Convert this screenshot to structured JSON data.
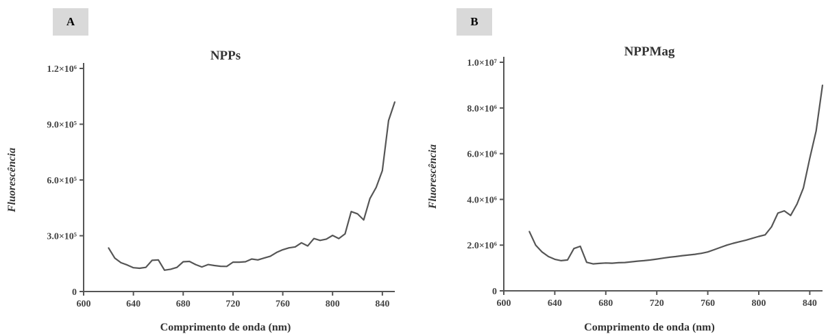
{
  "panels": [
    {
      "label": "A"
    },
    {
      "label": "B"
    }
  ],
  "chart_data": [
    {
      "type": "line",
      "title": "NPPs",
      "xlabel": "Comprimento de onda (nm)",
      "ylabel": "Fluorescência",
      "xlim": [
        600,
        850
      ],
      "ylim": [
        0,
        1200000
      ],
      "xticks": [
        600,
        640,
        680,
        720,
        760,
        800,
        840
      ],
      "xtick_labels": [
        "600",
        "640",
        "680",
        "720",
        "760",
        "800",
        "840"
      ],
      "yticks": [
        0,
        300000,
        600000,
        900000,
        1200000
      ],
      "ytick_labels": [
        "0",
        "3.0×10⁵",
        "6.0×10⁵",
        "9.0×10⁵",
        "1.2×10⁶"
      ],
      "grid": false,
      "series": [
        {
          "x": [
            620,
            625,
            630,
            635,
            640,
            645,
            650,
            655,
            660,
            665,
            670,
            675,
            680,
            685,
            690,
            695,
            700,
            705,
            710,
            715,
            720,
            725,
            730,
            735,
            740,
            745,
            750,
            755,
            760,
            765,
            770,
            775,
            780,
            785,
            790,
            795,
            800,
            805,
            810,
            815,
            820,
            825,
            830,
            835,
            840,
            845,
            850
          ],
          "y": [
            235000,
            180000,
            155000,
            143000,
            128000,
            125000,
            130000,
            168000,
            170000,
            115000,
            120000,
            130000,
            160000,
            162000,
            145000,
            132000,
            145000,
            140000,
            136000,
            135000,
            158000,
            158000,
            160000,
            175000,
            170000,
            180000,
            190000,
            210000,
            225000,
            235000,
            240000,
            262000,
            245000,
            285000,
            275000,
            282000,
            302000,
            285000,
            310000,
            430000,
            418000,
            385000,
            500000,
            560000,
            650000,
            920000,
            1020000
          ]
        }
      ]
    },
    {
      "type": "line",
      "title": "NPPMag",
      "xlabel": "Comprimento de onda (nm)",
      "ylabel": "Fluorescência",
      "xlim": [
        600,
        850
      ],
      "ylim": [
        0,
        10000000
      ],
      "xticks": [
        600,
        640,
        680,
        720,
        760,
        800,
        840
      ],
      "xtick_labels": [
        "600",
        "640",
        "680",
        "720",
        "760",
        "800",
        "840"
      ],
      "yticks": [
        0,
        2000000,
        4000000,
        6000000,
        8000000,
        10000000
      ],
      "ytick_labels": [
        "0",
        "2.0×10⁶",
        "4.0×10⁶",
        "6.0×10⁶",
        "8.0×10⁶",
        "1.0×10⁷"
      ],
      "grid": false,
      "series": [
        {
          "x": [
            620,
            625,
            630,
            635,
            640,
            645,
            650,
            655,
            660,
            665,
            670,
            675,
            680,
            685,
            690,
            695,
            700,
            705,
            710,
            715,
            720,
            725,
            730,
            735,
            740,
            745,
            750,
            755,
            760,
            765,
            770,
            775,
            780,
            785,
            790,
            795,
            800,
            805,
            810,
            815,
            820,
            825,
            830,
            835,
            840,
            845,
            850
          ],
          "y": [
            2600000,
            2000000,
            1700000,
            1500000,
            1380000,
            1320000,
            1350000,
            1850000,
            1950000,
            1250000,
            1180000,
            1200000,
            1220000,
            1210000,
            1230000,
            1240000,
            1270000,
            1300000,
            1320000,
            1350000,
            1390000,
            1430000,
            1470000,
            1500000,
            1540000,
            1570000,
            1600000,
            1640000,
            1700000,
            1800000,
            1900000,
            2000000,
            2080000,
            2150000,
            2220000,
            2300000,
            2380000,
            2450000,
            2800000,
            3400000,
            3500000,
            3300000,
            3800000,
            4500000,
            5800000,
            7000000,
            9000000
          ]
        }
      ]
    }
  ]
}
